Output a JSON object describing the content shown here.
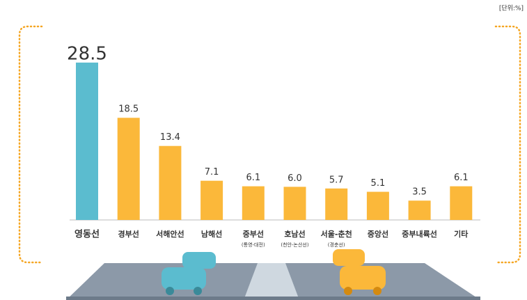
{
  "chart_data": {
    "type": "bar",
    "unit": "[단위:%]",
    "categories": [
      "영동선",
      "경부선",
      "서해안선",
      "남해선",
      "중부선",
      "호남선",
      "서울-춘천",
      "중앙선",
      "중부내륙선",
      "기타"
    ],
    "category_notes": [
      null,
      null,
      null,
      null,
      "(통영-대전)",
      "(천안-논산선)",
      "(경춘선)",
      null,
      null,
      null
    ],
    "values": [
      28.5,
      18.5,
      13.4,
      7.1,
      6.1,
      6.0,
      5.7,
      5.1,
      3.5,
      6.1
    ],
    "value_labels": [
      "28.5",
      "18.5",
      "13.4",
      "7.1",
      "6.1",
      "6.0",
      "5.7",
      "5.1",
      "3.5",
      "6.1"
    ],
    "colors": [
      "#5bbccf",
      "#fbb83a",
      "#fbb83a",
      "#fbb83a",
      "#fbb83a",
      "#fbb83a",
      "#fbb83a",
      "#fbb83a",
      "#fbb83a",
      "#fbb83a"
    ],
    "ylim": [
      0,
      30
    ]
  }
}
